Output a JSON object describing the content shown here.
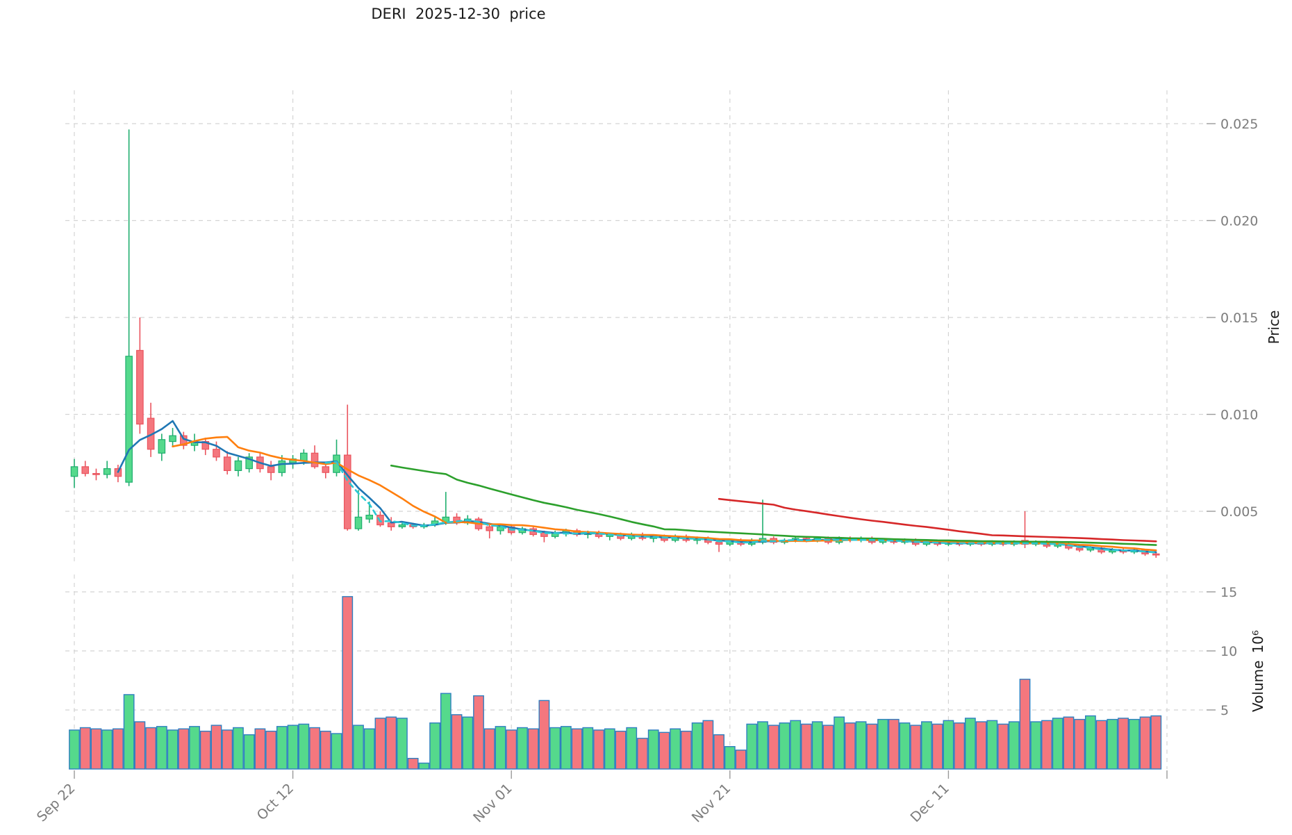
{
  "title": "DERI  2025-12-30  price",
  "axes": {
    "price_label": "Price",
    "volume_label": "Volume",
    "volume_scale": "10⁶",
    "price_ticks": [
      {
        "value": 0.005,
        "label": "0.005"
      },
      {
        "value": 0.01,
        "label": "0.010"
      },
      {
        "value": 0.015,
        "label": "0.015"
      },
      {
        "value": 0.02,
        "label": "0.020"
      },
      {
        "value": 0.025,
        "label": "0.025"
      }
    ],
    "volume_ticks": [
      {
        "value": 5,
        "label": "5"
      },
      {
        "value": 10,
        "label": "10"
      },
      {
        "value": 15,
        "label": "15"
      }
    ],
    "x_ticks": [
      {
        "index": 0,
        "label": "Sep 22"
      },
      {
        "index": 20,
        "label": "Oct 12"
      },
      {
        "index": 40,
        "label": "Nov 01"
      },
      {
        "index": 60,
        "label": "Nov 21"
      },
      {
        "index": 80,
        "label": "Dec 11"
      },
      {
        "index": 100,
        "label": ""
      }
    ]
  },
  "chart_data": {
    "type": "candlestick+volume",
    "x_start_label": "Sep 22",
    "x_end_label": "Dec 30",
    "num_candles": 100,
    "price_range": [
      0.002,
      0.0267
    ],
    "volume_range_millions": [
      0,
      16.5
    ],
    "grid": true,
    "ohlc": [
      [
        0.0068,
        0.0077,
        0.0062,
        0.0073
      ],
      [
        0.0073,
        0.0076,
        0.0068,
        0.00695
      ],
      [
        0.00695,
        0.0072,
        0.0066,
        0.0069
      ],
      [
        0.0069,
        0.0076,
        0.0067,
        0.0072
      ],
      [
        0.0072,
        0.0074,
        0.0065,
        0.0068
      ],
      [
        0.0065,
        0.0247,
        0.0063,
        0.013
      ],
      [
        0.0133,
        0.015,
        0.009,
        0.0095
      ],
      [
        0.0098,
        0.0106,
        0.0078,
        0.0082
      ],
      [
        0.008,
        0.009,
        0.0076,
        0.0087
      ],
      [
        0.0086,
        0.0093,
        0.0083,
        0.0089
      ],
      [
        0.0089,
        0.0091,
        0.0082,
        0.0084
      ],
      [
        0.0084,
        0.009,
        0.0081,
        0.0086
      ],
      [
        0.0086,
        0.0088,
        0.0079,
        0.0082
      ],
      [
        0.0082,
        0.0086,
        0.0076,
        0.0078
      ],
      [
        0.0078,
        0.0081,
        0.0069,
        0.0071
      ],
      [
        0.0071,
        0.0078,
        0.0068,
        0.0076
      ],
      [
        0.0072,
        0.008,
        0.007,
        0.0078
      ],
      [
        0.0078,
        0.008,
        0.007,
        0.0072
      ],
      [
        0.0073,
        0.0076,
        0.0066,
        0.007
      ],
      [
        0.007,
        0.0079,
        0.0068,
        0.0076
      ],
      [
        0.0075,
        0.0079,
        0.0072,
        0.0077
      ],
      [
        0.0076,
        0.0082,
        0.0074,
        0.008
      ],
      [
        0.008,
        0.0084,
        0.0072,
        0.0073
      ],
      [
        0.0073,
        0.0075,
        0.0067,
        0.007
      ],
      [
        0.007,
        0.0087,
        0.0068,
        0.0079
      ],
      [
        0.0079,
        0.0105,
        0.004,
        0.0041
      ],
      [
        0.0041,
        0.0061,
        0.004,
        0.0047
      ],
      [
        0.0046,
        0.0055,
        0.0044,
        0.0048
      ],
      [
        0.0048,
        0.005,
        0.0042,
        0.0043
      ],
      [
        0.0044,
        0.0047,
        0.004,
        0.0042
      ],
      [
        0.0042,
        0.0044,
        0.0041,
        0.0043
      ],
      [
        0.0043,
        0.0044,
        0.0041,
        0.0042
      ],
      [
        0.0042,
        0.0044,
        0.0041,
        0.0043
      ],
      [
        0.0043,
        0.0047,
        0.0042,
        0.0045
      ],
      [
        0.0044,
        0.006,
        0.0043,
        0.0047
      ],
      [
        0.0047,
        0.0049,
        0.0043,
        0.0044
      ],
      [
        0.0044,
        0.0048,
        0.0043,
        0.0046
      ],
      [
        0.0046,
        0.0047,
        0.004,
        0.0041
      ],
      [
        0.0042,
        0.0043,
        0.0036,
        0.004
      ],
      [
        0.004,
        0.0043,
        0.0038,
        0.0042
      ],
      [
        0.0042,
        0.0043,
        0.0038,
        0.0039
      ],
      [
        0.0039,
        0.0042,
        0.0038,
        0.0041
      ],
      [
        0.0041,
        0.0042,
        0.0037,
        0.0038
      ],
      [
        0.0039,
        0.004,
        0.0034,
        0.0037
      ],
      [
        0.0037,
        0.004,
        0.0036,
        0.0039
      ],
      [
        0.0039,
        0.0041,
        0.0037,
        0.004
      ],
      [
        0.004,
        0.0041,
        0.0037,
        0.0038
      ],
      [
        0.0038,
        0.004,
        0.0036,
        0.0039
      ],
      [
        0.0039,
        0.004,
        0.0036,
        0.0037
      ],
      [
        0.0037,
        0.0039,
        0.0035,
        0.0038
      ],
      [
        0.0038,
        0.0039,
        0.0035,
        0.0036
      ],
      [
        0.0036,
        0.0039,
        0.0035,
        0.0038
      ],
      [
        0.0038,
        0.0039,
        0.0035,
        0.0036
      ],
      [
        0.0036,
        0.0038,
        0.0034,
        0.0037
      ],
      [
        0.0037,
        0.0038,
        0.0034,
        0.0035
      ],
      [
        0.0035,
        0.0038,
        0.0034,
        0.0037
      ],
      [
        0.0037,
        0.0038,
        0.0034,
        0.0035
      ],
      [
        0.0035,
        0.0037,
        0.0033,
        0.0036
      ],
      [
        0.0036,
        0.0037,
        0.0033,
        0.0034
      ],
      [
        0.0034,
        0.0035,
        0.0029,
        0.0033
      ],
      [
        0.0033,
        0.0036,
        0.0032,
        0.0035
      ],
      [
        0.0035,
        0.0036,
        0.0032,
        0.0033
      ],
      [
        0.0033,
        0.0036,
        0.0032,
        0.0035
      ],
      [
        0.0034,
        0.0056,
        0.0033,
        0.0036
      ],
      [
        0.0036,
        0.0037,
        0.0033,
        0.0034
      ],
      [
        0.0034,
        0.0036,
        0.0033,
        0.0035
      ],
      [
        0.0035,
        0.0037,
        0.0034,
        0.0036
      ],
      [
        0.0036,
        0.0037,
        0.0034,
        0.0035
      ],
      [
        0.0035,
        0.0037,
        0.0034,
        0.0036
      ],
      [
        0.0036,
        0.0037,
        0.0033,
        0.0034
      ],
      [
        0.0034,
        0.0037,
        0.0033,
        0.0036
      ],
      [
        0.0036,
        0.0037,
        0.0034,
        0.0035
      ],
      [
        0.0035,
        0.0037,
        0.0034,
        0.0036
      ],
      [
        0.0036,
        0.0037,
        0.0033,
        0.0034
      ],
      [
        0.0034,
        0.0036,
        0.0033,
        0.0035
      ],
      [
        0.0035,
        0.0036,
        0.0033,
        0.0034
      ],
      [
        0.0034,
        0.0036,
        0.0033,
        0.0035
      ],
      [
        0.0035,
        0.0036,
        0.0032,
        0.0033
      ],
      [
        0.0033,
        0.0035,
        0.0032,
        0.0034
      ],
      [
        0.0034,
        0.0035,
        0.0032,
        0.0033
      ],
      [
        0.0033,
        0.0035,
        0.0032,
        0.0034
      ],
      [
        0.0034,
        0.0035,
        0.0032,
        0.0033
      ],
      [
        0.0033,
        0.0035,
        0.0032,
        0.0034
      ],
      [
        0.0034,
        0.0035,
        0.0032,
        0.0033
      ],
      [
        0.0033,
        0.0035,
        0.0032,
        0.0034
      ],
      [
        0.0034,
        0.0035,
        0.0032,
        0.0033
      ],
      [
        0.0033,
        0.0035,
        0.0032,
        0.0034
      ],
      [
        0.0035,
        0.005,
        0.0031,
        0.0033
      ],
      [
        0.0033,
        0.0035,
        0.0032,
        0.0034
      ],
      [
        0.0034,
        0.0035,
        0.0031,
        0.0032
      ],
      [
        0.0032,
        0.0034,
        0.0031,
        0.0033
      ],
      [
        0.0033,
        0.0034,
        0.003,
        0.0031
      ],
      [
        0.0031,
        0.0032,
        0.0029,
        0.003
      ],
      [
        0.003,
        0.0032,
        0.0029,
        0.0031
      ],
      [
        0.0031,
        0.0032,
        0.0028,
        0.0029
      ],
      [
        0.0029,
        0.0031,
        0.0028,
        0.003
      ],
      [
        0.003,
        0.0031,
        0.0028,
        0.0029
      ],
      [
        0.0029,
        0.0031,
        0.0028,
        0.003
      ],
      [
        0.003,
        0.003,
        0.0027,
        0.0028
      ],
      [
        0.0028,
        0.0029,
        0.0026,
        0.00275
      ]
    ],
    "volumes_millions": [
      3.3,
      3.5,
      3.4,
      3.3,
      3.4,
      6.3,
      4.0,
      3.5,
      3.6,
      3.3,
      3.4,
      3.6,
      3.2,
      3.7,
      3.3,
      3.5,
      2.9,
      3.4,
      3.2,
      3.6,
      3.7,
      3.8,
      3.5,
      3.2,
      3.0,
      14.6,
      3.7,
      3.4,
      4.3,
      4.4,
      4.3,
      0.9,
      0.5,
      3.9,
      6.4,
      4.6,
      4.4,
      6.2,
      3.4,
      3.6,
      3.3,
      3.5,
      3.4,
      5.8,
      3.5,
      3.6,
      3.4,
      3.5,
      3.3,
      3.4,
      3.2,
      3.5,
      2.6,
      3.3,
      3.1,
      3.4,
      3.2,
      3.9,
      4.1,
      2.9,
      1.9,
      1.6,
      3.8,
      4.0,
      3.7,
      3.9,
      4.1,
      3.8,
      4.0,
      3.7,
      4.4,
      3.9,
      4.0,
      3.8,
      4.2,
      4.2,
      3.9,
      3.7,
      4.0,
      3.8,
      4.1,
      3.9,
      4.3,
      4.0,
      4.1,
      3.8,
      4.0,
      7.6,
      4.0,
      4.1,
      4.3,
      4.4,
      4.2,
      4.5,
      4.1,
      4.2,
      4.3,
      4.2,
      4.4,
      4.5
    ],
    "moving_averages": [
      {
        "name": "ma-5",
        "period": 5,
        "color": "#1f77b4",
        "style": "solid",
        "start_index": 4
      },
      {
        "name": "ma-10",
        "period": 10,
        "color": "#ff7f0e",
        "style": "solid",
        "start_index": 9
      },
      {
        "name": "ma-30",
        "period": 30,
        "color": "#2ca02c",
        "style": "solid",
        "start_index": 29
      },
      {
        "name": "ma-60",
        "period": 60,
        "color": "#d62728",
        "style": "solid",
        "start_index": 59
      },
      {
        "name": "ma-4-dashed",
        "period": 4,
        "color": "#2cc8d4",
        "style": "dashed",
        "start_index": 23
      }
    ],
    "colors": {
      "up_fill": "#55d98c",
      "up_edge": "#1fae6e",
      "down_fill": "#f4777e",
      "down_edge": "#ea545e",
      "volume_edge": "#2f7fc1",
      "grid": "#d4d4d4",
      "tick_text": "#7c7c7c",
      "axis_title_text": "#1a1a1a"
    }
  }
}
